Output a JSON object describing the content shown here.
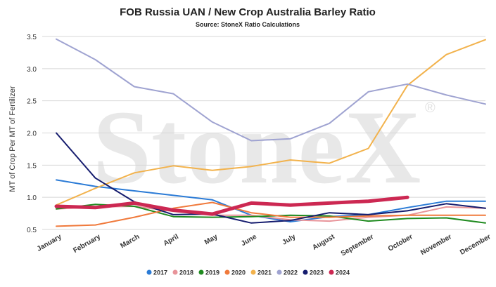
{
  "chart_data": {
    "type": "line",
    "title": "FOB Russia UAN / New Crop Australia Barley Ratio",
    "subtitle": "Source: StoneX Ratio Calculations",
    "ylabel": "MT of Crop Per MT of Fertilizer",
    "xlabel": "",
    "watermark": "StoneX",
    "ylim": [
      0.5,
      3.5
    ],
    "yticks": [
      "0.5",
      "1.0",
      "1.5",
      "2.0",
      "2.5",
      "3.0",
      "3.5"
    ],
    "grid": true,
    "legend_position": "bottom",
    "categories": [
      "January",
      "February",
      "March",
      "April",
      "May",
      "June",
      "July",
      "August",
      "September",
      "October",
      "November",
      "December"
    ],
    "series": [
      {
        "name": "2017",
        "color": "#2b7bd6",
        "width": 2,
        "values": [
          1.27,
          1.17,
          1.1,
          1.03,
          0.96,
          0.72,
          0.62,
          0.7,
          0.73,
          0.84,
          0.94,
          0.94
        ]
      },
      {
        "name": "2018",
        "color": "#e8949a",
        "width": 2,
        "values": [
          0.82,
          0.85,
          0.86,
          0.78,
          0.72,
          0.72,
          0.65,
          0.63,
          0.69,
          0.72,
          0.85,
          0.83
        ]
      },
      {
        "name": "2019",
        "color": "#1f8a1f",
        "width": 2,
        "values": [
          0.82,
          0.89,
          0.86,
          0.7,
          0.69,
          0.7,
          0.72,
          0.71,
          0.63,
          0.67,
          0.68,
          0.6
        ]
      },
      {
        "name": "2020",
        "color": "#f07a3c",
        "width": 2,
        "values": [
          0.55,
          0.57,
          0.69,
          0.83,
          0.92,
          0.76,
          0.69,
          0.69,
          0.71,
          0.72,
          0.72,
          0.72
        ]
      },
      {
        "name": "2021",
        "color": "#f2b24c",
        "width": 2,
        "values": [
          0.88,
          1.14,
          1.38,
          1.49,
          1.42,
          1.48,
          1.58,
          1.53,
          1.76,
          2.74,
          3.22,
          3.45
        ]
      },
      {
        "name": "2022",
        "color": "#9fa3d1",
        "width": 2,
        "values": [
          3.46,
          3.14,
          2.72,
          2.61,
          2.17,
          1.88,
          1.91,
          2.15,
          2.64,
          2.76,
          2.59,
          2.45
        ]
      },
      {
        "name": "2023",
        "color": "#151c6e",
        "width": 2,
        "values": [
          2.0,
          1.3,
          0.93,
          0.73,
          0.74,
          0.6,
          0.64,
          0.76,
          0.73,
          0.79,
          0.9,
          0.83
        ]
      },
      {
        "name": "2024",
        "color": "#cc2852",
        "width": 5,
        "values": [
          0.86,
          0.84,
          0.91,
          0.8,
          0.74,
          0.91,
          0.88,
          0.91,
          0.94,
          1.0,
          null,
          null
        ]
      }
    ]
  }
}
